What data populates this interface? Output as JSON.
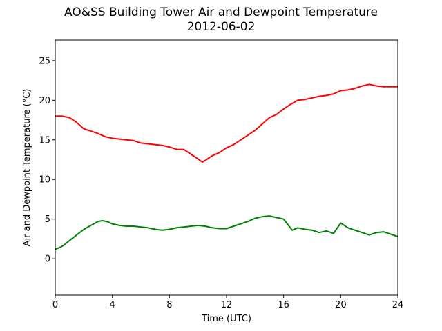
{
  "chart_data": {
    "type": "line",
    "title": "AO&SS Building Tower Air and Dewpoint Temperature",
    "subtitle": "2012-06-02",
    "xlabel": "Time (UTC)",
    "ylabel": "Air and Dewpoint Temperature (°C)",
    "xlim": [
      0,
      24
    ],
    "ylim": [
      -4.6,
      27.6
    ],
    "xticks": [
      0,
      4,
      8,
      12,
      16,
      20,
      24
    ],
    "yticks": [
      0,
      5,
      10,
      15,
      20,
      25
    ],
    "grid": false,
    "series": [
      {
        "color": "#ff0000",
        "x": [
          0,
          0.5,
          1,
          1.5,
          2,
          2.5,
          3,
          3.5,
          4,
          4.5,
          5,
          5.5,
          6,
          6.5,
          7,
          7.5,
          8,
          8.5,
          9,
          9.5,
          10,
          10.3,
          10.5,
          11,
          11.5,
          12,
          12.5,
          13,
          13.5,
          14,
          14.5,
          15,
          15.5,
          16,
          16.5,
          17,
          17.5,
          18,
          18.5,
          19,
          19.5,
          20,
          20.5,
          21,
          21.5,
          22,
          22.5,
          23,
          23.5,
          24
        ],
        "values": [
          18.0,
          18.0,
          17.8,
          17.2,
          16.4,
          16.1,
          15.8,
          15.4,
          15.2,
          15.1,
          15.0,
          14.9,
          14.6,
          14.5,
          14.4,
          14.3,
          14.1,
          13.8,
          13.8,
          13.2,
          12.6,
          12.2,
          12.4,
          13.0,
          13.4,
          14.0,
          14.4,
          15.0,
          15.6,
          16.2,
          17.0,
          17.8,
          18.2,
          18.9,
          19.5,
          20.0,
          20.1,
          20.3,
          20.5,
          20.6,
          20.8,
          21.2,
          21.3,
          21.5,
          21.8,
          22.0,
          21.8,
          21.7,
          21.7,
          21.7
        ]
      },
      {
        "color": "#008000",
        "x": [
          0,
          0.3,
          0.6,
          1,
          1.5,
          2,
          2.5,
          3,
          3.3,
          3.6,
          4,
          4.5,
          5,
          5.5,
          6,
          6.5,
          7,
          7.5,
          8,
          8.5,
          9,
          9.5,
          10,
          10.5,
          11,
          11.5,
          12,
          12.5,
          13,
          13.5,
          14,
          14.5,
          15,
          15.5,
          16,
          16.3,
          16.6,
          17,
          17.5,
          18,
          18.5,
          19,
          19.5,
          20,
          20.5,
          21,
          21.5,
          22,
          22.5,
          23,
          23.5,
          24
        ],
        "values": [
          1.2,
          1.4,
          1.7,
          2.3,
          3.0,
          3.7,
          4.2,
          4.7,
          4.8,
          4.7,
          4.4,
          4.2,
          4.1,
          4.1,
          4.0,
          3.9,
          3.7,
          3.6,
          3.7,
          3.9,
          4.0,
          4.1,
          4.2,
          4.1,
          3.9,
          3.8,
          3.8,
          4.1,
          4.4,
          4.7,
          5.1,
          5.3,
          5.4,
          5.2,
          5.0,
          4.3,
          3.6,
          3.9,
          3.7,
          3.6,
          3.3,
          3.5,
          3.2,
          4.5,
          3.9,
          3.6,
          3.3,
          3.0,
          3.3,
          3.4,
          3.1,
          2.8
        ]
      }
    ]
  }
}
